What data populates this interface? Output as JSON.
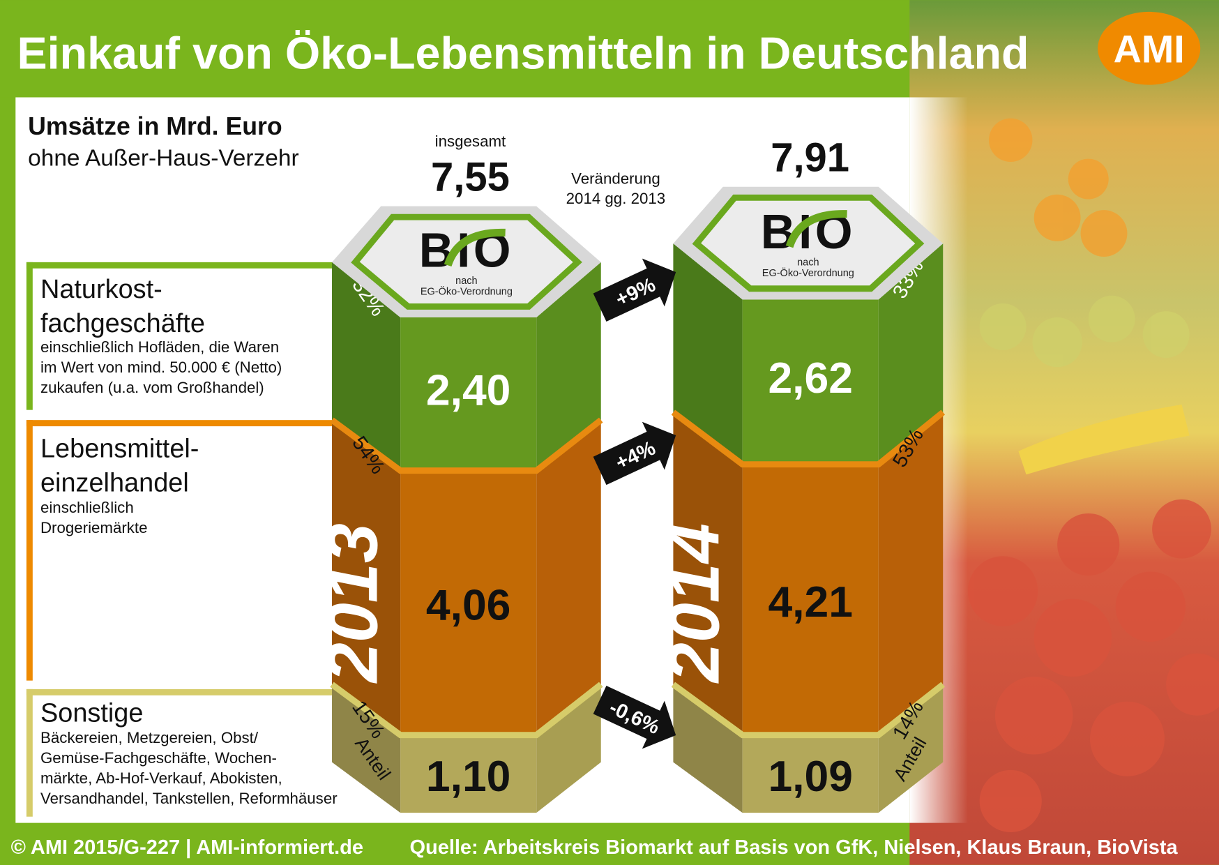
{
  "header": {
    "title": "Einkauf von Öko-Lebensmitteln in Deutschland",
    "logo": "AMI"
  },
  "subtitle": {
    "main": "Umsätze in Mrd. Euro",
    "sub": "ohne Außer-Haus-Verzehr"
  },
  "total_label": "insgesamt",
  "change_label": [
    "Veränderung",
    "2014 gg. 2013"
  ],
  "bio_seal": {
    "word": "BIO",
    "line1": "nach",
    "line2": "EG-Öko-Verordnung"
  },
  "categories": [
    {
      "title": [
        "Naturkost-",
        "fachgeschäfte"
      ],
      "desc": [
        "einschließlich Hofläden, die Waren",
        "im Wert von mind. 50.000 € (Netto)",
        "zukaufen (u.a. vom Großhandel)"
      ]
    },
    {
      "title": [
        "Lebensmittel-",
        "einzelhandel"
      ],
      "desc": [
        "einschließlich",
        "Drogeriemärkte"
      ]
    },
    {
      "title": [
        "Sonstige"
      ],
      "desc": [
        "Bäckereien, Metzgereien, Obst/",
        "Gemüse-Fachgeschäfte, Wochen-",
        "märkte, Ab-Hof-Verkauf, Abokisten,",
        "Versandhandel, Tankstellen, Reformhäuser"
      ]
    }
  ],
  "share_word": "Anteil",
  "colors": {
    "green": "#65991f",
    "orange": "#c26a05",
    "olive": "#b3a85a",
    "header": "#7ab51d",
    "logo": "#f08a00"
  },
  "chart_data": {
    "type": "bar",
    "stacked": true,
    "unit": "Mrd. Euro",
    "categories": [
      "2013",
      "2014"
    ],
    "totals": [
      "7,55",
      "7,91"
    ],
    "series": [
      {
        "name": "Naturkostfachgeschäfte",
        "values": [
          2.4,
          2.62
        ],
        "labels": [
          "2,40",
          "2,62"
        ],
        "shares": [
          "32%",
          "33%"
        ],
        "change": "+9%"
      },
      {
        "name": "Lebensmitteleinzelhandel",
        "values": [
          4.06,
          4.21
        ],
        "labels": [
          "4,06",
          "4,21"
        ],
        "shares": [
          "54%",
          "53%"
        ],
        "change": "+4%"
      },
      {
        "name": "Sonstige",
        "values": [
          1.1,
          1.09
        ],
        "labels": [
          "1,10",
          "1,09"
        ],
        "shares": [
          "15%",
          "14%"
        ],
        "change": "-0,6%"
      }
    ]
  },
  "footer": {
    "left": "© AMI 2015/G-227 | AMI-informiert.de",
    "right": "Quelle: Arbeitskreis Biomarkt auf Basis von GfK, Nielsen, Klaus Braun, BioVista"
  }
}
